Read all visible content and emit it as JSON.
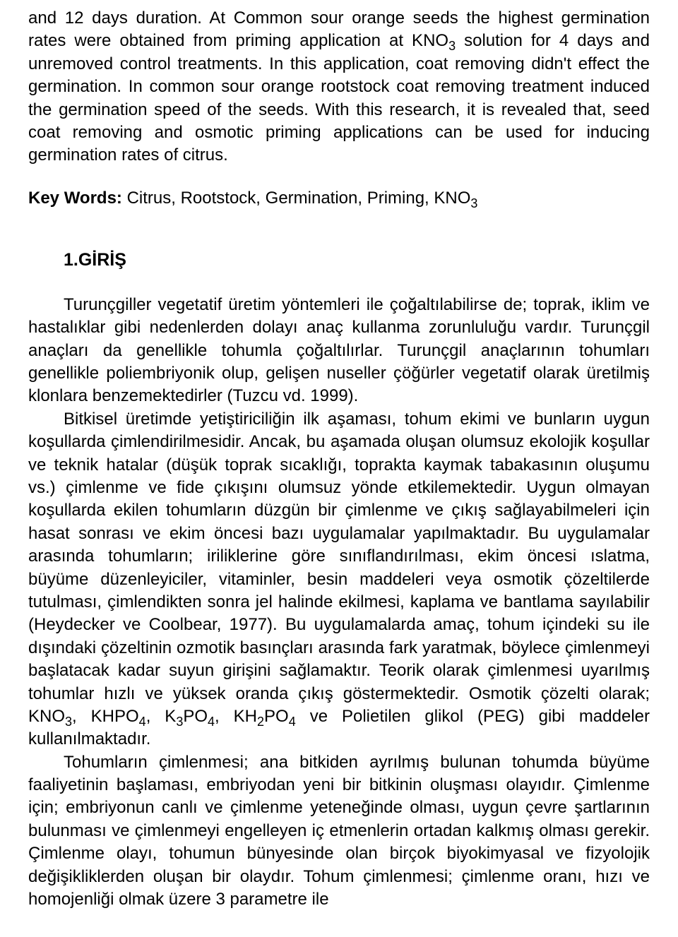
{
  "abstract": {
    "text_parts": [
      "and 12 days duration. At Common sour orange seeds the highest germination rates were obtained from priming application at KNO",
      " solution for 4 days and unremoved control treatments. In this application, coat removing didn't effect the germination. In common sour orange rootstock coat removing treatment induced the germination speed of the seeds. With this research, it is revealed that, seed coat removing and osmotic priming applications can be used for inducing germination rates of citrus."
    ],
    "sub1": "3"
  },
  "keywords": {
    "label": "Key Words:",
    "text_before_sub": " Citrus, Rootstock, Germination, Priming, KNO",
    "sub": "3"
  },
  "section": {
    "heading": "1.GİRİŞ"
  },
  "para1": "Turunçgiller vegetatif üretim yöntemleri ile çoğaltılabilirse de; toprak, iklim ve hastalıklar gibi nedenlerden dolayı anaç kullanma zorunluluğu vardır. Turunçgil anaçları da genellikle tohumla çoğaltılırlar. Turunçgil anaçlarının tohumları genellikle poliembriyonik olup, gelişen nuseller çöğürler vegetatif olarak üretilmiş klonlara benzemektedirler (Tuzcu vd. 1999).",
  "para2": {
    "t0": "Bitkisel üretimde yetiştiriciliğin ilk aşaması, tohum ekimi ve bunların uygun koşullarda çimlendirilmesidir. Ancak, bu aşamada oluşan olumsuz ekolojik koşullar ve teknik hatalar (düşük toprak sıcaklığı, toprakta kaymak tabakasının oluşumu vs.) çimlenme ve fide çıkışını olumsuz yönde etkilemektedir. Uygun olmayan koşullarda ekilen tohumların düzgün bir çimlenme ve çıkış sağlayabilmeleri için hasat sonrası ve ekim öncesi bazı uygulamalar yapılmaktadır. Bu uygulamalar arasında tohumların; iriliklerine göre sınıflandırılması, ekim öncesi ıslatma, büyüme düzenleyiciler, vitaminler, besin maddeleri veya osmotik çözeltilerde tutulması, çimlendikten sonra jel halinde ekilmesi, kaplama ve bantlama sayılabilir (Heydecker ve Coolbear, 1977). Bu uygulamalarda amaç, tohum içindeki su ile dışındaki çözeltinin ozmotik basınçları arasında fark yaratmak, böylece çimlenmeyi başlatacak kadar suyun girişini sağlamaktır. Teorik olarak çimlenmesi uyarılmış tohumlar hızlı ve yüksek oranda çıkış göstermektedir. Osmotik çözelti olarak; KNO",
    "s1": "3",
    "t1": ", KHPO",
    "s2": "4",
    "t2": ", K",
    "s3": "3",
    "t3": "PO",
    "s4": "4",
    "t4": ", KH",
    "s5": "2",
    "t5": "PO",
    "s6": "4",
    "t6": " ve Polietilen glikol (PEG) gibi maddeler kullanılmaktadır."
  },
  "para3": "Tohumların çimlenmesi; ana bitkiden ayrılmış bulunan tohumda büyüme faaliyetinin başlaması, embriyodan yeni bir bitkinin oluşması olayıdır. Çimlenme için; embriyonun canlı ve çimlenme yeteneğinde olması, uygun çevre şartlarının bulunması ve çimlenmeyi engelleyen iç etmenlerin ortadan kalkmış olması gerekir. Çimlenme olayı, tohumun bünyesinde olan birçok biyokimyasal ve fizyolojik değişikliklerden oluşan bir olaydır. Tohum çimlenmesi; çimlenme oranı, hızı ve homojenliği olmak üzere 3 parametre ile"
}
